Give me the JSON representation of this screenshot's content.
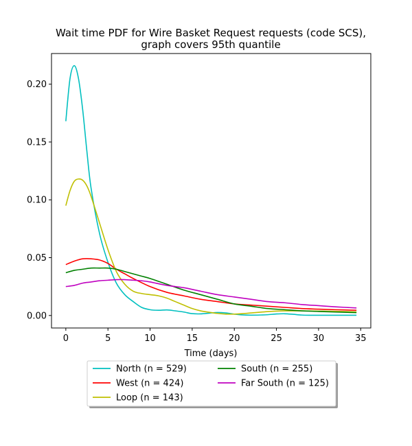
{
  "chart_data": {
    "type": "line",
    "title_line1": "Wait time PDF for Wire Basket Request  requests (code SCS),",
    "title_line2": "graph covers 95th quantile",
    "xlabel": "Time (days)",
    "ylabel": "",
    "xlim": [
      -1.7,
      36.2
    ],
    "ylim": [
      -0.0108,
      0.2265
    ],
    "xticks": [
      0,
      5,
      10,
      15,
      20,
      25,
      30,
      35
    ],
    "xtick_labels": [
      "0",
      "5",
      "10",
      "15",
      "20",
      "25",
      "30",
      "35"
    ],
    "yticks": [
      0.0,
      0.05,
      0.1,
      0.15,
      0.2
    ],
    "ytick_labels": [
      "0.00",
      "0.05",
      "0.10",
      "0.15",
      "0.20"
    ],
    "grid": false,
    "legend_placement": "below",
    "series": [
      {
        "name": "North (n = 529)",
        "color": "#00bfbf",
        "x": [
          0,
          0.5,
          1,
          1.5,
          2,
          2.5,
          3,
          4,
          5,
          6,
          7,
          8,
          9,
          10,
          11,
          12,
          13,
          14,
          15,
          16,
          17,
          18,
          19,
          20,
          21,
          22,
          23,
          24,
          25,
          26,
          27,
          28,
          29,
          30,
          31,
          32,
          33,
          34,
          34.5
        ],
        "y": [
          0.168,
          0.205,
          0.216,
          0.205,
          0.178,
          0.142,
          0.11,
          0.071,
          0.046,
          0.028,
          0.018,
          0.012,
          0.007,
          0.005,
          0.0045,
          0.0048,
          0.004,
          0.003,
          0.0016,
          0.0014,
          0.002,
          0.0026,
          0.0022,
          0.0012,
          0.0005,
          0.0003,
          0.0004,
          0.0007,
          0.0013,
          0.0015,
          0.001,
          0.0004,
          0.0002,
          0.0002,
          0.0002,
          0.0002,
          0.0002,
          0.0002,
          0.0002
        ]
      },
      {
        "name": "West (n = 424)",
        "color": "#ff0000",
        "x": [
          0,
          1,
          2,
          3,
          4,
          5,
          6,
          7,
          8,
          10,
          12,
          14,
          16,
          18,
          20,
          22,
          24,
          26,
          28,
          30,
          32,
          34.5
        ],
        "y": [
          0.044,
          0.047,
          0.049,
          0.049,
          0.048,
          0.045,
          0.04,
          0.036,
          0.032,
          0.025,
          0.02,
          0.017,
          0.014,
          0.012,
          0.01,
          0.009,
          0.008,
          0.007,
          0.006,
          0.0055,
          0.005,
          0.0045
        ]
      },
      {
        "name": "Loop (n = 143)",
        "color": "#bfbf00",
        "x": [
          0,
          0.5,
          1,
          1.5,
          2,
          2.5,
          3,
          4,
          5,
          6,
          7,
          8,
          9,
          10,
          11,
          12,
          13,
          14,
          15,
          16,
          17,
          18,
          19,
          20,
          21,
          22,
          23,
          24,
          25,
          26,
          27,
          28,
          29,
          30,
          31,
          32,
          33,
          34,
          34.5
        ],
        "y": [
          0.095,
          0.108,
          0.116,
          0.118,
          0.117,
          0.112,
          0.103,
          0.08,
          0.057,
          0.038,
          0.027,
          0.021,
          0.019,
          0.018,
          0.017,
          0.015,
          0.012,
          0.009,
          0.006,
          0.004,
          0.0028,
          0.0018,
          0.0012,
          0.0012,
          0.0016,
          0.0022,
          0.0028,
          0.0034,
          0.0038,
          0.004,
          0.004,
          0.004,
          0.0039,
          0.0038,
          0.0037,
          0.0036,
          0.0034,
          0.0032,
          0.0031
        ]
      },
      {
        "name": "South (n = 255)",
        "color": "#008000",
        "x": [
          0,
          1,
          2,
          3,
          4,
          5,
          6,
          7,
          8,
          9,
          10,
          12,
          14,
          16,
          18,
          20,
          22,
          24,
          26,
          28,
          30,
          32,
          34.5
        ],
        "y": [
          0.037,
          0.039,
          0.04,
          0.041,
          0.041,
          0.041,
          0.04,
          0.038,
          0.036,
          0.034,
          0.032,
          0.027,
          0.022,
          0.018,
          0.014,
          0.01,
          0.008,
          0.006,
          0.005,
          0.004,
          0.0035,
          0.003,
          0.0025
        ]
      },
      {
        "name": "Far South (n = 125)",
        "color": "#bf00bf",
        "x": [
          0,
          1,
          2,
          3,
          4,
          5,
          6,
          7,
          8,
          9,
          10,
          12,
          14,
          16,
          18,
          20,
          22,
          24,
          26,
          28,
          30,
          32,
          34.5
        ],
        "y": [
          0.025,
          0.026,
          0.028,
          0.029,
          0.03,
          0.0305,
          0.031,
          0.031,
          0.0305,
          0.03,
          0.029,
          0.026,
          0.024,
          0.021,
          0.018,
          0.016,
          0.014,
          0.012,
          0.011,
          0.0095,
          0.0085,
          0.0075,
          0.0065
        ]
      }
    ]
  }
}
